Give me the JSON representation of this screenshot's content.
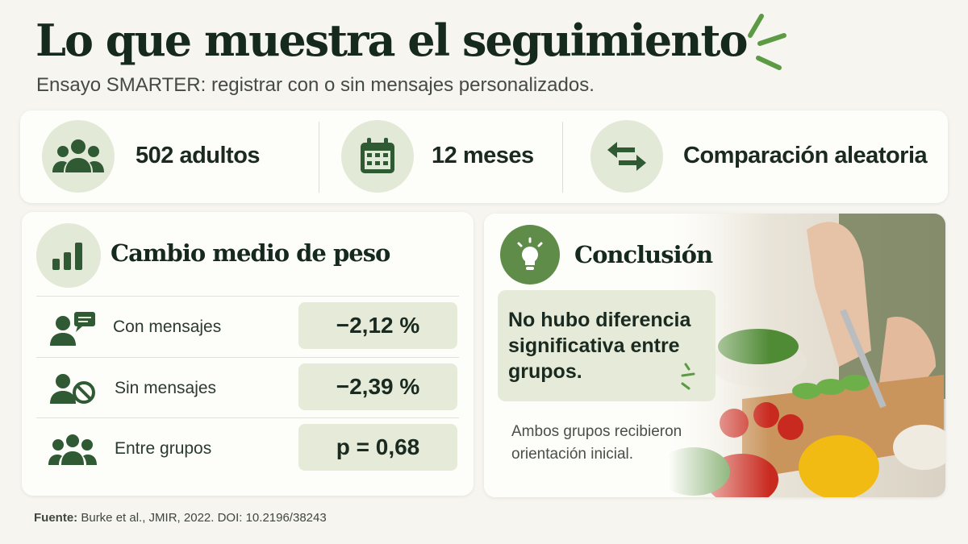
{
  "header": {
    "title": "Lo que muestra el seguimiento",
    "subtitle": "Ensayo SMARTER: registrar con o sin mensajes personalizados."
  },
  "stats": [
    {
      "label": "502 adultos"
    },
    {
      "label": "12 meses"
    },
    {
      "label": "Comparación aleatoria"
    }
  ],
  "weight_panel": {
    "title": "Cambio medio de peso",
    "rows": [
      {
        "label": "Con mensajes",
        "value": "−2,12 %"
      },
      {
        "label": "Sin mensajes",
        "value": "−2,39 %"
      },
      {
        "label": "Entre grupos",
        "value": "p = 0,68"
      }
    ]
  },
  "conclusion_panel": {
    "title": "Conclusión",
    "text": "No hubo diferencia significativa entre grupos.",
    "note": "Ambos grupos recibieron orientación inicial."
  },
  "footer": {
    "source_label": "Fuente:",
    "source": "Burke et al., JMIR, 2022. DOI: 10.2196/38243"
  }
}
